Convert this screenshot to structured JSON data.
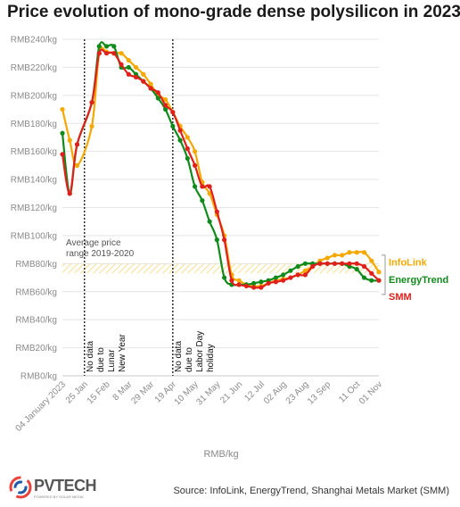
{
  "title": "Price evolution of mono-grade dense polysilicon in 2023",
  "source": "Source: InfoLink, EnergyTrend, Shanghai Metals Market (SMM)",
  "logo": {
    "text": "PVTECH",
    "sub": "POWERED BY SOLAR MEDIA"
  },
  "colors": {
    "infolink": "#f5a800",
    "energytrend": "#118a1c",
    "smm": "#e0201b",
    "band": "#f7dc84",
    "grid": "#e4e4e4"
  },
  "chart_data": {
    "type": "line",
    "title": "Price evolution of mono-grade dense polysilicon in 2023",
    "xlabel": "RMB/kg",
    "ylabel": "",
    "ylim": [
      0,
      240
    ],
    "y_ticks": [
      0,
      20,
      40,
      60,
      80,
      100,
      120,
      140,
      160,
      180,
      200,
      220,
      240
    ],
    "y_tick_labels": [
      "RMB0/kg",
      "RMB20/kg",
      "RMB40/kg",
      "RMB60/kg",
      "RMB80/kg",
      "RMB100/kg",
      "RMB120/kg",
      "RMB140/kg",
      "RMB160/kg",
      "RMB180/kg",
      "RMB200/kg",
      "RMB220/kg",
      "RMB240/kg"
    ],
    "x_ticks": [
      "04 January 2023",
      "25 Jan",
      "15 Feb",
      "8 Mar",
      "29 Mar",
      "19 Apr",
      "10 May",
      "31 May",
      "21 Jun",
      "12 Jul",
      "02 Aug",
      "23 Aug",
      "13 Sep",
      "11 Oct",
      "01 Nov"
    ],
    "x_tick_days": [
      0,
      21,
      42,
      63,
      84,
      105,
      126,
      147,
      168,
      189,
      210,
      231,
      252,
      280,
      301
    ],
    "grid": true,
    "legend_position": "right",
    "series": [
      {
        "name": "InfoLink",
        "color": "#f5a800",
        "x": [
          0,
          7,
          14,
          28,
          35,
          42,
          49,
          56,
          63,
          70,
          77,
          84,
          91,
          98,
          105,
          112,
          119,
          126,
          133,
          140,
          147,
          154,
          161,
          168,
          175,
          182,
          189,
          196,
          203,
          210,
          217,
          224,
          231,
          238,
          245,
          252,
          259,
          266,
          273,
          280,
          287,
          294,
          301
        ],
        "y": [
          190,
          168,
          150,
          178,
          230,
          231,
          230,
          230,
          225,
          220,
          215,
          208,
          200,
          197,
          188,
          178,
          170,
          160,
          138,
          130,
          115,
          100,
          72,
          68,
          65,
          64,
          64,
          66,
          68,
          69,
          70,
          72,
          75,
          78,
          82,
          84,
          86,
          86,
          88,
          88,
          88,
          82,
          74
        ]
      },
      {
        "name": "EnergyTrend",
        "color": "#118a1c",
        "x": [
          0,
          7,
          14,
          28,
          35,
          42,
          49,
          56,
          63,
          70,
          77,
          84,
          91,
          98,
          105,
          112,
          119,
          126,
          133,
          140,
          147,
          154,
          161,
          168,
          175,
          182,
          189,
          196,
          203,
          210,
          217,
          224,
          231,
          238,
          245,
          252,
          259,
          266,
          273,
          280,
          287,
          294,
          301
        ],
        "y": [
          173,
          130,
          165,
          195,
          235,
          235,
          235,
          220,
          220,
          215,
          210,
          205,
          198,
          190,
          178,
          168,
          155,
          135,
          125,
          110,
          97,
          70,
          65,
          65,
          65,
          66,
          67,
          68,
          70,
          72,
          75,
          78,
          80,
          80,
          80,
          80,
          80,
          80,
          78,
          76,
          70,
          68,
          68
        ]
      },
      {
        "name": "SMM",
        "color": "#e0201b",
        "x": [
          0,
          7,
          14,
          28,
          35,
          42,
          49,
          56,
          63,
          70,
          77,
          84,
          91,
          98,
          105,
          112,
          119,
          126,
          133,
          140,
          147,
          154,
          161,
          168,
          175,
          182,
          189,
          196,
          203,
          210,
          217,
          224,
          231,
          238,
          245,
          252,
          259,
          266,
          273,
          280,
          287,
          294,
          301
        ],
        "y": [
          158,
          130,
          165,
          195,
          230,
          230,
          230,
          222,
          215,
          213,
          210,
          205,
          202,
          193,
          188,
          175,
          162,
          150,
          135,
          135,
          117,
          97,
          68,
          65,
          64,
          63,
          63,
          66,
          67,
          68,
          70,
          72,
          72,
          78,
          80,
          80,
          80,
          80,
          80,
          80,
          78,
          73,
          68
        ]
      }
    ],
    "band": {
      "label": "Average price range 2019-2020",
      "label_lines": [
        "Average price",
        "range 2019-2020"
      ],
      "ymin": 73,
      "ymax": 80
    },
    "annotations": [
      {
        "x": 21,
        "lines": [
          "No data",
          "due to",
          "Lunar",
          "New Year"
        ]
      },
      {
        "x": 105,
        "lines": [
          "No data",
          "due to",
          "Labor Day",
          "holiday"
        ]
      }
    ]
  }
}
